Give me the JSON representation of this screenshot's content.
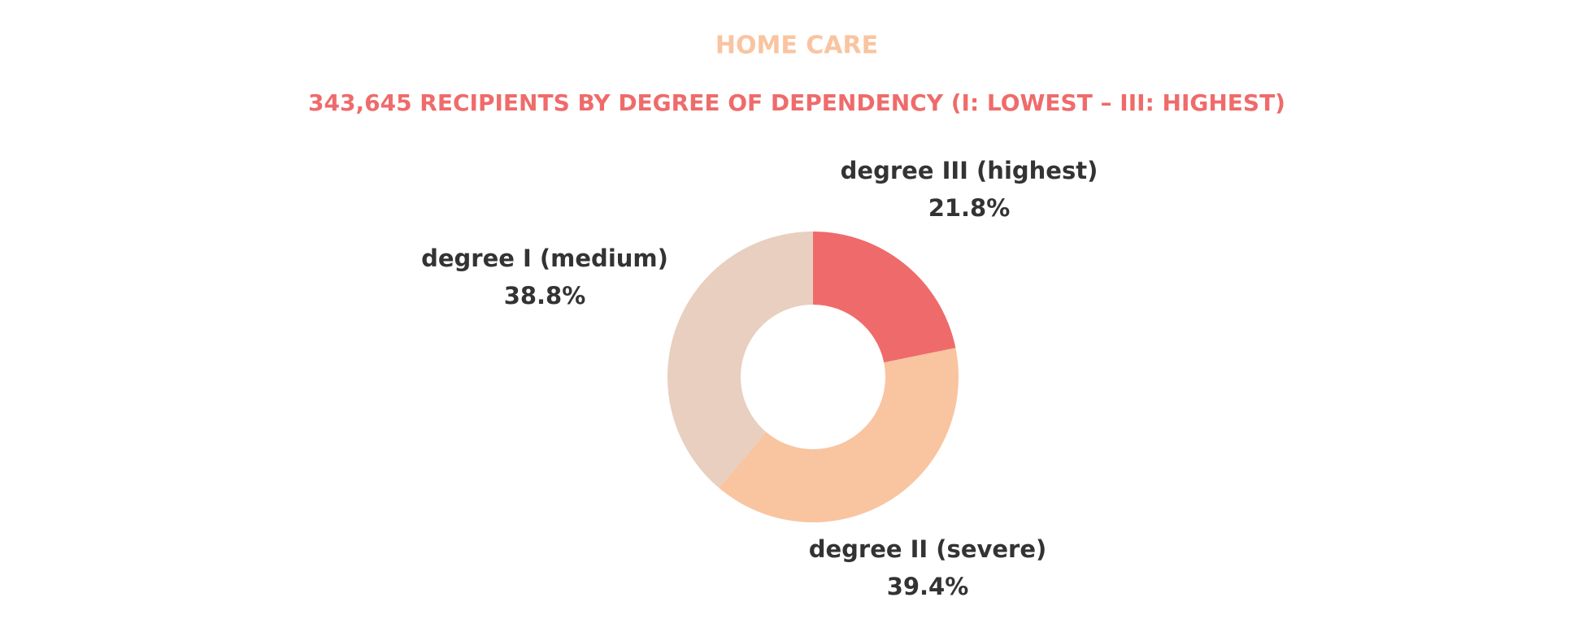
{
  "chart_data": {
    "type": "donut",
    "title": "HOME CARE",
    "subtitle": "343,645 RECIPIENTS BY DEGREE OF DEPENDENCY (I: LOWEST – III: HIGHEST)",
    "categories": [
      "degree III (highest)",
      "degree II (severe)",
      "degree I (medium)"
    ],
    "values": [
      21.8,
      39.4,
      38.8
    ],
    "value_labels": [
      "21.8%",
      "39.4%",
      "38.8%"
    ],
    "colors": [
      "#ef6b6b",
      "#f9c4a0",
      "#e8cfc0"
    ]
  }
}
